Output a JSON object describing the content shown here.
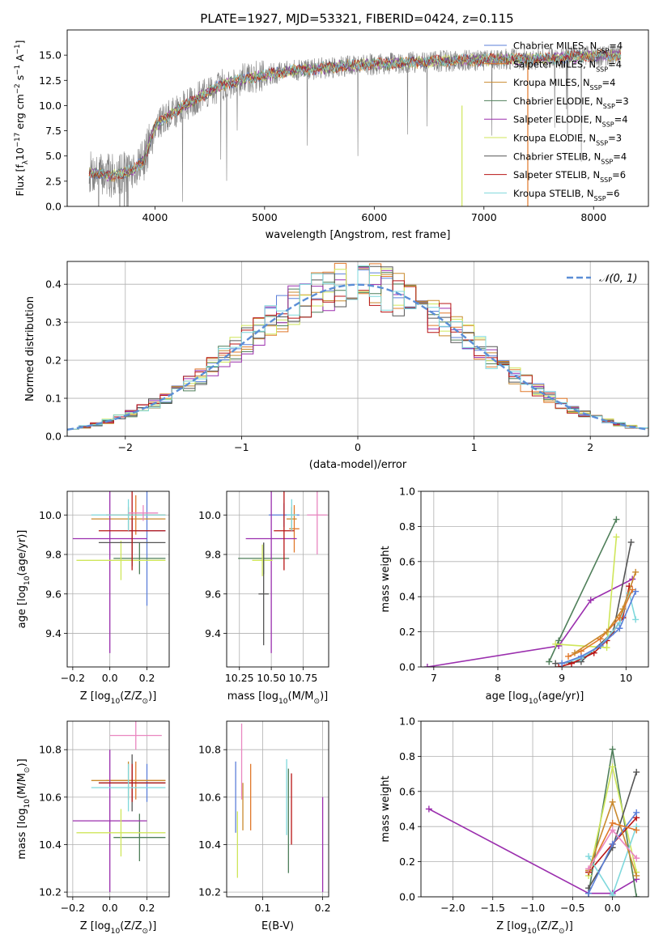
{
  "figure_title": "PLATE=1927, MJD=53321, FIBERID=0424, z=0.115",
  "colors": {
    "Chabrier MILES": "#5b7fd9",
    "Salpeter MILES": "#e0782a",
    "Kroupa MILES": "#c98a2e",
    "Chabrier ELODIE": "#4f7f5a",
    "Salpeter ELODIE": "#9b2fae",
    "Kroupa ELODIE": "#cfe65a",
    "Chabrier STELIB": "#555555",
    "Salpeter STELIB": "#b81414",
    "Kroupa STELIB": "#7fd8dc",
    "data": "#808080",
    "normal": "#5b8ed6",
    "extra": "#e986c0"
  },
  "chart_data": [
    {
      "id": "spectrum",
      "type": "line",
      "title": "PLATE=1927, MJD=53321, FIBERID=0424, z=0.115",
      "xlabel": "wavelength [Angstrom, rest frame]",
      "ylabel_parts": [
        "Flux [f",
        "λ",
        "10",
        "−17",
        " erg cm",
        "−2",
        " s",
        "−1",
        " A",
        "−1",
        "]"
      ],
      "xlim": [
        3200,
        8500
      ],
      "ylim": [
        0,
        17.5
      ],
      "xticks": [
        4000,
        5000,
        6000,
        7000,
        8000
      ],
      "yticks": [
        0.0,
        2.5,
        5.0,
        7.5,
        10.0,
        12.5,
        15.0
      ],
      "ytick_labels": [
        "0.0",
        "2.5",
        "5.0",
        "7.5",
        "10.0",
        "12.5",
        "15.0"
      ],
      "continuum": [
        [
          3400,
          3.4
        ],
        [
          3600,
          3.0
        ],
        [
          3800,
          3.6
        ],
        [
          3900,
          4.6
        ],
        [
          4000,
          8.0
        ],
        [
          4200,
          9.5
        ],
        [
          4400,
          10.8
        ],
        [
          4600,
          12.0
        ],
        [
          4800,
          12.6
        ],
        [
          5000,
          13.0
        ],
        [
          5200,
          13.4
        ],
        [
          5400,
          13.6
        ],
        [
          5600,
          13.8
        ],
        [
          5800,
          14.0
        ],
        [
          6000,
          14.1
        ],
        [
          6200,
          14.2
        ],
        [
          6400,
          14.3
        ],
        [
          6600,
          14.4
        ],
        [
          6800,
          14.5
        ],
        [
          7000,
          14.5
        ],
        [
          7200,
          14.6
        ],
        [
          7400,
          14.6
        ],
        [
          7600,
          14.7
        ],
        [
          7800,
          14.8
        ],
        [
          8000,
          14.9
        ],
        [
          8250,
          15.0
        ]
      ],
      "legend_placement": "right",
      "legend": [
        "Chabrier MILES, NSSP=4",
        "Salpeter MILES, NSSP=4",
        "Kroupa MILES, NSSP=4",
        "Chabrier ELODIE, NSSP=3",
        "Salpeter ELODIE, NSSP=4",
        "Kroupa ELODIE, NSSP=3",
        "Chabrier STELIB, NSSP=4",
        "Salpeter STELIB, NSSP=6",
        "Kroupa STELIB, NSSP=6"
      ],
      "legend_items": [
        {
          "name": "Chabrier MILES",
          "nssp": "4",
          "main": "Chabrier MILES, N",
          "sub": "SSP",
          "tail": "=4"
        },
        {
          "name": "Salpeter MILES",
          "nssp": "4",
          "main": "Salpeter MILES, N",
          "sub": "SSP",
          "tail": "=4"
        },
        {
          "name": "Kroupa MILES",
          "nssp": "4",
          "main": "Kroupa MILES, N",
          "sub": "SSP",
          "tail": "=4"
        },
        {
          "name": "Chabrier ELODIE",
          "nssp": "3",
          "main": "Chabrier ELODIE, N",
          "sub": "SSP",
          "tail": "=3"
        },
        {
          "name": "Salpeter ELODIE",
          "nssp": "4",
          "main": "Salpeter ELODIE, N",
          "sub": "SSP",
          "tail": "=4"
        },
        {
          "name": "Kroupa ELODIE",
          "nssp": "3",
          "main": "Kroupa ELODIE, N",
          "sub": "SSP",
          "tail": "=3"
        },
        {
          "name": "Chabrier STELIB",
          "nssp": "4",
          "main": "Chabrier STELIB, N",
          "sub": "SSP",
          "tail": "=4"
        },
        {
          "name": "Salpeter STELIB",
          "nssp": "6",
          "main": "Salpeter STELIB, N",
          "sub": "SSP",
          "tail": "=6"
        },
        {
          "name": "Kroupa STELIB",
          "nssp": "6",
          "main": "Kroupa STELIB, N",
          "sub": "SSP",
          "tail": "=6"
        }
      ]
    },
    {
      "id": "residuals",
      "type": "line",
      "xlabel": "(data-model)/error",
      "ylabel": "Normed distribution",
      "xlim": [
        -2.5,
        2.5
      ],
      "ylim": [
        0,
        0.46
      ],
      "xticks": [
        -2,
        -1,
        0,
        1,
        2
      ],
      "xtick_labels": [
        "−2",
        "−1",
        "0",
        "1",
        "2"
      ],
      "yticks": [
        0.0,
        0.1,
        0.2,
        0.3,
        0.4
      ],
      "ytick_labels": [
        "0.0",
        "0.1",
        "0.2",
        "0.3",
        "0.4"
      ],
      "grid": true,
      "legend": "𝒩(0, 1)",
      "legend_placement": "top-right",
      "bin_width": 0.1
    },
    {
      "id": "age-vs-Z",
      "type": "scatter",
      "xlabel": "Z [log10(Z/Z⊙)]",
      "xlabel_parts": [
        "Z [log",
        "10",
        "(Z/Z",
        "⊙",
        ")]"
      ],
      "ylabel": "age  [log10(age/yr)]",
      "ylabel_parts": [
        "age  [log",
        "10",
        "(age/yr)]"
      ],
      "xlim": [
        -0.23,
        0.32
      ],
      "ylim": [
        9.23,
        10.12
      ],
      "xticks": [
        -0.2,
        0.0,
        0.2
      ],
      "xtick_labels": [
        "−0.2",
        "0.0",
        "0.2"
      ],
      "yticks": [
        9.4,
        9.6,
        9.8,
        10.0
      ],
      "ytick_labels": [
        "9.4",
        "9.6",
        "9.8",
        "10.0"
      ],
      "grid": true,
      "points": [
        {
          "model": "Chabrier MILES",
          "x": 0.2,
          "xerr": 0.1,
          "y": 9.92,
          "yerr": 0.38
        },
        {
          "model": "Salpeter MILES",
          "x": 0.14,
          "xerr": 0.16,
          "y": 10.0,
          "yerr": 0.1
        },
        {
          "model": "Kroupa MILES",
          "x": 0.1,
          "xerr": 0.2,
          "y": 9.98,
          "yerr": 0.06
        },
        {
          "model": "Chabrier ELODIE",
          "x": 0.16,
          "xerr": 0.14,
          "y": 9.78,
          "yerr": 0.08
        },
        {
          "model": "Salpeter ELODIE",
          "x": 0.0,
          "xerr": 0.2,
          "y": 9.88,
          "yerr": 0.58
        },
        {
          "model": "Kroupa ELODIE",
          "x": 0.06,
          "xerr": 0.24,
          "y": 9.77,
          "yerr": 0.1
        },
        {
          "model": "Chabrier STELIB",
          "x": 0.12,
          "xerr": 0.18,
          "y": 9.86,
          "yerr": 0.12
        },
        {
          "model": "Salpeter STELIB",
          "x": 0.12,
          "xerr": 0.18,
          "y": 9.92,
          "yerr": 0.2
        },
        {
          "model": "Kroupa STELIB",
          "x": 0.1,
          "xerr": 0.2,
          "y": 10.0,
          "yerr": 0.08
        },
        {
          "model": "extra",
          "x": 0.18,
          "xerr": 0.08,
          "y": 10.01,
          "yerr": 0.04
        }
      ]
    },
    {
      "id": "age-vs-mass",
      "type": "scatter",
      "xlabel": "mass [log10(M/M⊙)]",
      "xlabel_parts": [
        "mass [log",
        "10",
        "(M/M",
        "⊙",
        ")]"
      ],
      "xlim": [
        10.15,
        10.95
      ],
      "ylim": [
        9.23,
        10.12
      ],
      "xticks": [
        10.25,
        10.5,
        10.75
      ],
      "xtick_labels": [
        "10.25",
        "10.50",
        "10.75"
      ],
      "yticks": [
        9.4,
        9.6,
        9.8,
        10.0
      ],
      "ytick_labels": [
        "9.4",
        "9.6",
        "9.8",
        "10.0"
      ],
      "grid": true,
      "points": [
        {
          "model": "Chabrier MILES",
          "x": 10.6,
          "xerr": 0.12,
          "y": 10.0,
          "yerr": 0.06
        },
        {
          "model": "Salpeter MILES",
          "x": 10.68,
          "xerr": 0.04,
          "y": 9.93,
          "yerr": 0.12
        },
        {
          "model": "Kroupa MILES",
          "x": 10.66,
          "xerr": 0.04,
          "y": 9.98,
          "yerr": 0.06
        },
        {
          "model": "Chabrier ELODIE",
          "x": 10.44,
          "xerr": 0.2,
          "y": 9.78,
          "yerr": 0.08
        },
        {
          "model": "Salpeter ELODIE",
          "x": 10.5,
          "xerr": 0.2,
          "y": 9.88,
          "yerr": 0.58
        },
        {
          "model": "Kroupa ELODIE",
          "x": 10.43,
          "xerr": 0.08,
          "y": 9.77,
          "yerr": 0.08
        },
        {
          "model": "Chabrier STELIB",
          "x": 10.44,
          "xerr": 0.04,
          "y": 9.6,
          "yerr": 0.26
        },
        {
          "model": "Salpeter STELIB",
          "x": 10.6,
          "xerr": 0.08,
          "y": 9.92,
          "yerr": 0.2
        },
        {
          "model": "Kroupa STELIB",
          "x": 10.66,
          "xerr": 0.04,
          "y": 10.0,
          "yerr": 0.08
        },
        {
          "model": "extra",
          "x": 10.86,
          "xerr": 0.08,
          "y": 10.0,
          "yerr": 0.2
        }
      ]
    },
    {
      "id": "massweight-vs-age",
      "type": "line",
      "xlabel": "age  [log10(age/yr)]",
      "xlabel_parts": [
        "age  [log",
        "10",
        "(age/yr)]"
      ],
      "ylabel": "mass weight",
      "xlim": [
        6.8,
        10.35
      ],
      "ylim": [
        0,
        1
      ],
      "xticks": [
        7,
        8,
        9,
        10
      ],
      "xtick_labels": [
        "7",
        "8",
        "9",
        "10"
      ],
      "yticks": [
        0.0,
        0.2,
        0.4,
        0.6,
        0.8,
        1.0
      ],
      "ytick_labels": [
        "0.0",
        "0.2",
        "0.4",
        "0.6",
        "0.8",
        "1.0"
      ],
      "grid": true,
      "series": [
        {
          "model": "Salpeter ELODIE",
          "x": [
            6.9,
            8.95,
            9.45,
            10.1
          ],
          "y": [
            0.0,
            0.12,
            0.38,
            0.5
          ]
        },
        {
          "model": "Chabrier ELODIE",
          "x": [
            8.8,
            8.95,
            9.85
          ],
          "y": [
            0.03,
            0.15,
            0.84
          ]
        },
        {
          "model": "Kroupa ELODIE",
          "x": [
            8.9,
            9.7,
            9.85
          ],
          "y": [
            0.13,
            0.11,
            0.74
          ]
        },
        {
          "model": "Chabrier STELIB",
          "x": [
            8.9,
            9.3,
            9.8,
            10.08
          ],
          "y": [
            0.02,
            0.03,
            0.2,
            0.71
          ]
        },
        {
          "model": "Salpeter STELIB",
          "x": [
            8.95,
            9.15,
            9.5,
            9.7,
            9.95,
            10.05
          ],
          "y": [
            0.0,
            0.02,
            0.08,
            0.15,
            0.28,
            0.46
          ]
        },
        {
          "model": "Kroupa STELIB",
          "x": [
            9.0,
            9.3,
            9.6,
            9.9,
            10.05,
            10.15
          ],
          "y": [
            0.02,
            0.05,
            0.12,
            0.25,
            0.42,
            0.27
          ]
        },
        {
          "model": "Chabrier MILES",
          "x": [
            9.0,
            9.3,
            9.6,
            9.9,
            10.15
          ],
          "y": [
            0.02,
            0.06,
            0.12,
            0.22,
            0.43
          ]
        },
        {
          "model": "Salpeter MILES",
          "x": [
            9.1,
            9.3,
            9.6,
            9.9,
            10.1
          ],
          "y": [
            0.06,
            0.09,
            0.16,
            0.28,
            0.44
          ]
        },
        {
          "model": "Kroupa MILES",
          "x": [
            9.2,
            9.7,
            9.95,
            10.15
          ],
          "y": [
            0.08,
            0.2,
            0.33,
            0.54
          ]
        }
      ]
    },
    {
      "id": "mass-vs-Z",
      "type": "scatter",
      "xlabel": "Z [log10(Z/Z⊙)]",
      "xlabel_parts": [
        "Z [log",
        "10",
        "(Z/Z",
        "⊙",
        ")]"
      ],
      "ylabel": "mass [log10(M/M⊙)]",
      "ylabel_parts": [
        "mass [log",
        "10",
        "(M/M",
        "⊙",
        ")]"
      ],
      "xlim": [
        -0.23,
        0.32
      ],
      "ylim": [
        10.18,
        10.92
      ],
      "xticks": [
        -0.2,
        0.0,
        0.2
      ],
      "xtick_labels": [
        "−0.2",
        "0.0",
        "0.2"
      ],
      "yticks": [
        10.2,
        10.4,
        10.6,
        10.8
      ],
      "ytick_labels": [
        "10.2",
        "10.4",
        "10.6",
        "10.8"
      ],
      "grid": true,
      "points": [
        {
          "model": "Chabrier MILES",
          "x": 0.2,
          "xerr": 0.1,
          "y": 10.66,
          "yerr": 0.08
        },
        {
          "model": "Salpeter MILES",
          "x": 0.14,
          "xerr": 0.16,
          "y": 10.67,
          "yerr": 0.08
        },
        {
          "model": "Kroupa MILES",
          "x": 0.1,
          "xerr": 0.2,
          "y": 10.67,
          "yerr": 0.08
        },
        {
          "model": "Chabrier ELODIE",
          "x": 0.16,
          "xerr": 0.14,
          "y": 10.43,
          "yerr": 0.1
        },
        {
          "model": "Salpeter ELODIE",
          "x": 0.0,
          "xerr": 0.2,
          "y": 10.5,
          "yerr": 0.3
        },
        {
          "model": "Kroupa ELODIE",
          "x": 0.06,
          "xerr": 0.24,
          "y": 10.45,
          "yerr": 0.1
        },
        {
          "model": "Chabrier STELIB",
          "x": 0.12,
          "xerr": 0.18,
          "y": 10.66,
          "yerr": 0.12
        },
        {
          "model": "Salpeter STELIB",
          "x": 0.12,
          "xerr": 0.18,
          "y": 10.66,
          "yerr": 0.08
        },
        {
          "model": "Kroupa STELIB",
          "x": 0.1,
          "xerr": 0.2,
          "y": 10.64,
          "yerr": 0.1
        },
        {
          "model": "extra",
          "x": 0.14,
          "xerr": 0.14,
          "y": 10.86,
          "yerr": 0.06
        }
      ]
    },
    {
      "id": "mass-vs-EBV",
      "type": "scatter",
      "xlabel": "E(B-V)",
      "xlim": [
        0.04,
        0.21
      ],
      "ylim": [
        10.18,
        10.92
      ],
      "xticks": [
        0.1,
        0.2
      ],
      "xtick_labels": [
        "0.1",
        "0.2"
      ],
      "yticks": [
        10.2,
        10.4,
        10.6,
        10.8
      ],
      "ytick_labels": [
        "10.2",
        "10.4",
        "10.6",
        "10.8"
      ],
      "grid": true,
      "points": [
        {
          "model": "Chabrier MILES",
          "x": 0.055,
          "y": 10.6,
          "yerr": 0.15
        },
        {
          "model": "Kroupa ELODIE",
          "x": 0.058,
          "y": 10.4,
          "yerr": 0.14
        },
        {
          "model": "extra",
          "x": 0.065,
          "y": 10.75,
          "yerr": 0.16
        },
        {
          "model": "Kroupa MILES",
          "x": 0.067,
          "y": 10.56,
          "yerr": 0.1
        },
        {
          "model": "Salpeter MILES",
          "x": 0.08,
          "y": 10.6,
          "yerr": 0.14
        },
        {
          "model": "Kroupa STELIB",
          "x": 0.14,
          "y": 10.6,
          "yerr": 0.16
        },
        {
          "model": "Chabrier ELODIE",
          "x": 0.143,
          "y": 10.5,
          "yerr": 0.22
        },
        {
          "model": "Salpeter STELIB",
          "x": 0.148,
          "y": 10.55,
          "yerr": 0.15
        },
        {
          "model": "Salpeter ELODIE",
          "x": 0.2,
          "y": 10.4,
          "yerr": 0.2
        }
      ]
    },
    {
      "id": "massweight-vs-Z",
      "type": "line",
      "xlabel": "Z [log10(Z/Z⊙)]",
      "xlabel_parts": [
        "Z [log",
        "10",
        "(Z/Z",
        "⊙",
        ")]"
      ],
      "ylabel": "mass weight",
      "xlim": [
        -2.4,
        0.45
      ],
      "ylim": [
        0,
        1
      ],
      "xticks": [
        -2.0,
        -1.5,
        -1.0,
        -0.5,
        0.0
      ],
      "xtick_labels": [
        "−2.0",
        "−1.5",
        "−1.0",
        "−0.5",
        "0.0"
      ],
      "yticks": [
        0.0,
        0.2,
        0.4,
        0.6,
        0.8,
        1.0
      ],
      "ytick_labels": [
        "0.0",
        "0.2",
        "0.4",
        "0.6",
        "0.8",
        "1.0"
      ],
      "grid": true,
      "series": [
        {
          "model": "Salpeter ELODIE",
          "x": [
            -2.3,
            -0.3,
            0.0,
            0.3
          ],
          "y": [
            0.5,
            0.02,
            0.02,
            0.1
          ]
        },
        {
          "model": "Chabrier ELODIE",
          "x": [
            -0.3,
            0.0,
            0.3
          ],
          "y": [
            0.02,
            0.84,
            0.0
          ]
        },
        {
          "model": "Kroupa ELODIE",
          "x": [
            -0.3,
            0.0,
            0.3
          ],
          "y": [
            0.12,
            0.74,
            0.14
          ]
        },
        {
          "model": "Chabrier STELIB",
          "x": [
            -0.3,
            0.0,
            0.3
          ],
          "y": [
            0.05,
            0.28,
            0.71
          ]
        },
        {
          "model": "Salpeter STELIB",
          "x": [
            -0.3,
            0.0,
            0.3
          ],
          "y": [
            0.14,
            0.3,
            0.45
          ]
        },
        {
          "model": "Kroupa STELIB",
          "x": [
            -0.3,
            0.0,
            0.3
          ],
          "y": [
            0.23,
            0.01,
            0.4
          ]
        },
        {
          "model": "Chabrier MILES",
          "x": [
            -0.3,
            0.0,
            0.3
          ],
          "y": [
            0.02,
            0.3,
            0.48
          ]
        },
        {
          "model": "Salpeter MILES",
          "x": [
            -0.3,
            0.0,
            0.3
          ],
          "y": [
            0.15,
            0.42,
            0.38
          ]
        },
        {
          "model": "Kroupa MILES",
          "x": [
            -0.3,
            0.0,
            0.3
          ],
          "y": [
            0.15,
            0.54,
            0.12
          ]
        },
        {
          "model": "extra",
          "x": [
            -0.3,
            0.0,
            0.3
          ],
          "y": [
            0.16,
            0.38,
            0.22
          ]
        }
      ]
    }
  ]
}
